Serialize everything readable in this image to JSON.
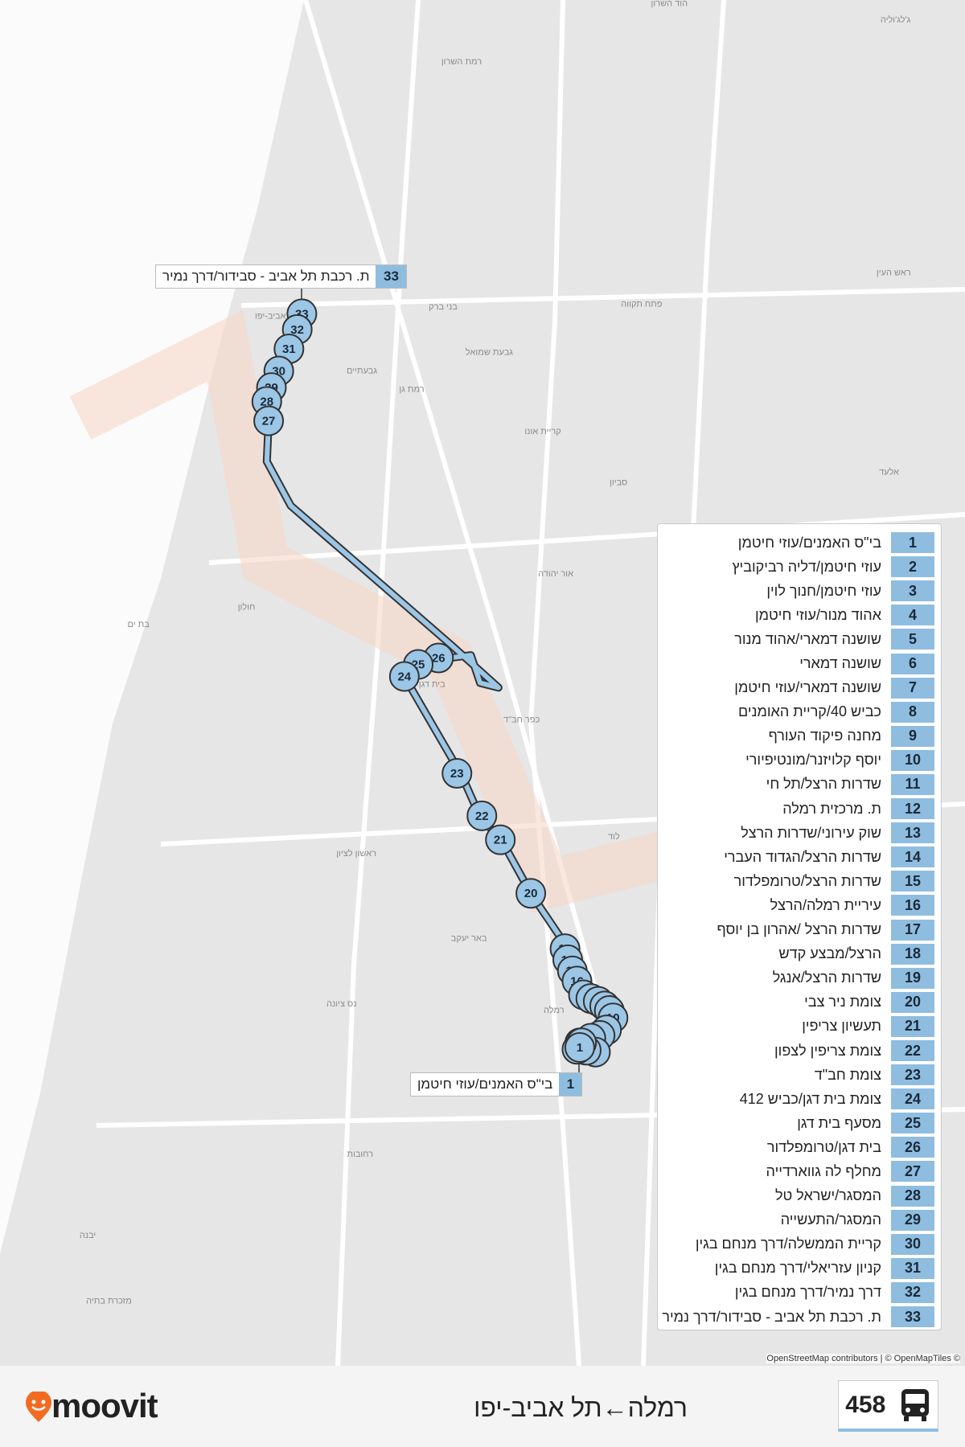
{
  "route": {
    "number": "458",
    "direction": "רמלה←תל אביב-יפו"
  },
  "brand": "moovit",
  "attribution": "OpenStreetMap contributors | © OpenMapTiles ©",
  "callouts": [
    {
      "number": "33",
      "name": "ת. רכבת תל אביב - סבידור/דרך נמיר"
    },
    {
      "number": "1",
      "name": "בי\"ס האמנים/עוזי חיטמן"
    }
  ],
  "stops": [
    {
      "number": "1",
      "name": "בי\"ס האמנים/עוזי חיטמן"
    },
    {
      "number": "2",
      "name": "עוזי חיטמן/דליה רביקוביץ"
    },
    {
      "number": "3",
      "name": "עוזי חיטמן/חנוך לוין"
    },
    {
      "number": "4",
      "name": "אהוד מנור/עוזי חיטמן"
    },
    {
      "number": "5",
      "name": "שושנה דמארי/אהוד מנור"
    },
    {
      "number": "6",
      "name": "שושנה דמארי"
    },
    {
      "number": "7",
      "name": "שושנה דמארי/עוזי חיטמן"
    },
    {
      "number": "8",
      "name": "כביש 40/קריית האומנים"
    },
    {
      "number": "9",
      "name": "מחנה פיקוד העורף"
    },
    {
      "number": "10",
      "name": "יוסף קלויזנר/מונטיפיורי"
    },
    {
      "number": "11",
      "name": "שדרות הרצל/תל חי"
    },
    {
      "number": "12",
      "name": "ת. מרכזית רמלה"
    },
    {
      "number": "13",
      "name": "שוק עירוני/שדרות הרצל"
    },
    {
      "number": "14",
      "name": "שדרות הרצל/הגדוד העברי"
    },
    {
      "number": "15",
      "name": "שדרות הרצל/טרומפלדור"
    },
    {
      "number": "16",
      "name": "עיריית רמלה/הרצל"
    },
    {
      "number": "17",
      "name": "שדרות הרצל /אהרון בן יוסף"
    },
    {
      "number": "18",
      "name": "הרצל/מבצע קדש"
    },
    {
      "number": "19",
      "name": "שדרות הרצל/אנגל"
    },
    {
      "number": "20",
      "name": "צומת ניר צבי"
    },
    {
      "number": "21",
      "name": "תעשיון צריפין"
    },
    {
      "number": "22",
      "name": "צומת צריפין לצפון"
    },
    {
      "number": "23",
      "name": "צומת חב\"ד"
    },
    {
      "number": "24",
      "name": "צומת בית דגן/כביש 412"
    },
    {
      "number": "25",
      "name": "מסעף בית דגן"
    },
    {
      "number": "26",
      "name": "בית דגן/טרומפלדור"
    },
    {
      "number": "27",
      "name": "מחלף לה גווארדייה"
    },
    {
      "number": "28",
      "name": "המסגר/ישראל טל"
    },
    {
      "number": "29",
      "name": "המסגר/התעשייה"
    },
    {
      "number": "30",
      "name": "קריית הממשלה/דרך מנחם בגין"
    },
    {
      "number": "31",
      "name": "קניון עזריאלי/דרך מנחם בגין"
    },
    {
      "number": "32",
      "name": "דרך נמיר/דרך מנחם בגין"
    },
    {
      "number": "33",
      "name": "ת. רכבת תל אביב - סבידור/דרך נמיר"
    }
  ],
  "place_labels": [
    "הוד השרון",
    "ג'לג'וליה",
    "רמת השרון",
    "בני ברק",
    "פתח תקווה",
    "ראש העין",
    "גבעת שמואל",
    "גבעתיים",
    "רמת גן",
    "קריית אונו",
    "סביון",
    "אלעד",
    "אור יהודה",
    "חולון",
    "בת ים",
    "בית דגן",
    "כפר חב\"ד",
    "לוד",
    "ראשון לציון",
    "באר יעקב",
    "נס ציונה",
    "רמלה",
    "רחובות",
    "יבנה",
    "מזכרת בתיה",
    "תל אביב-יפו"
  ]
}
